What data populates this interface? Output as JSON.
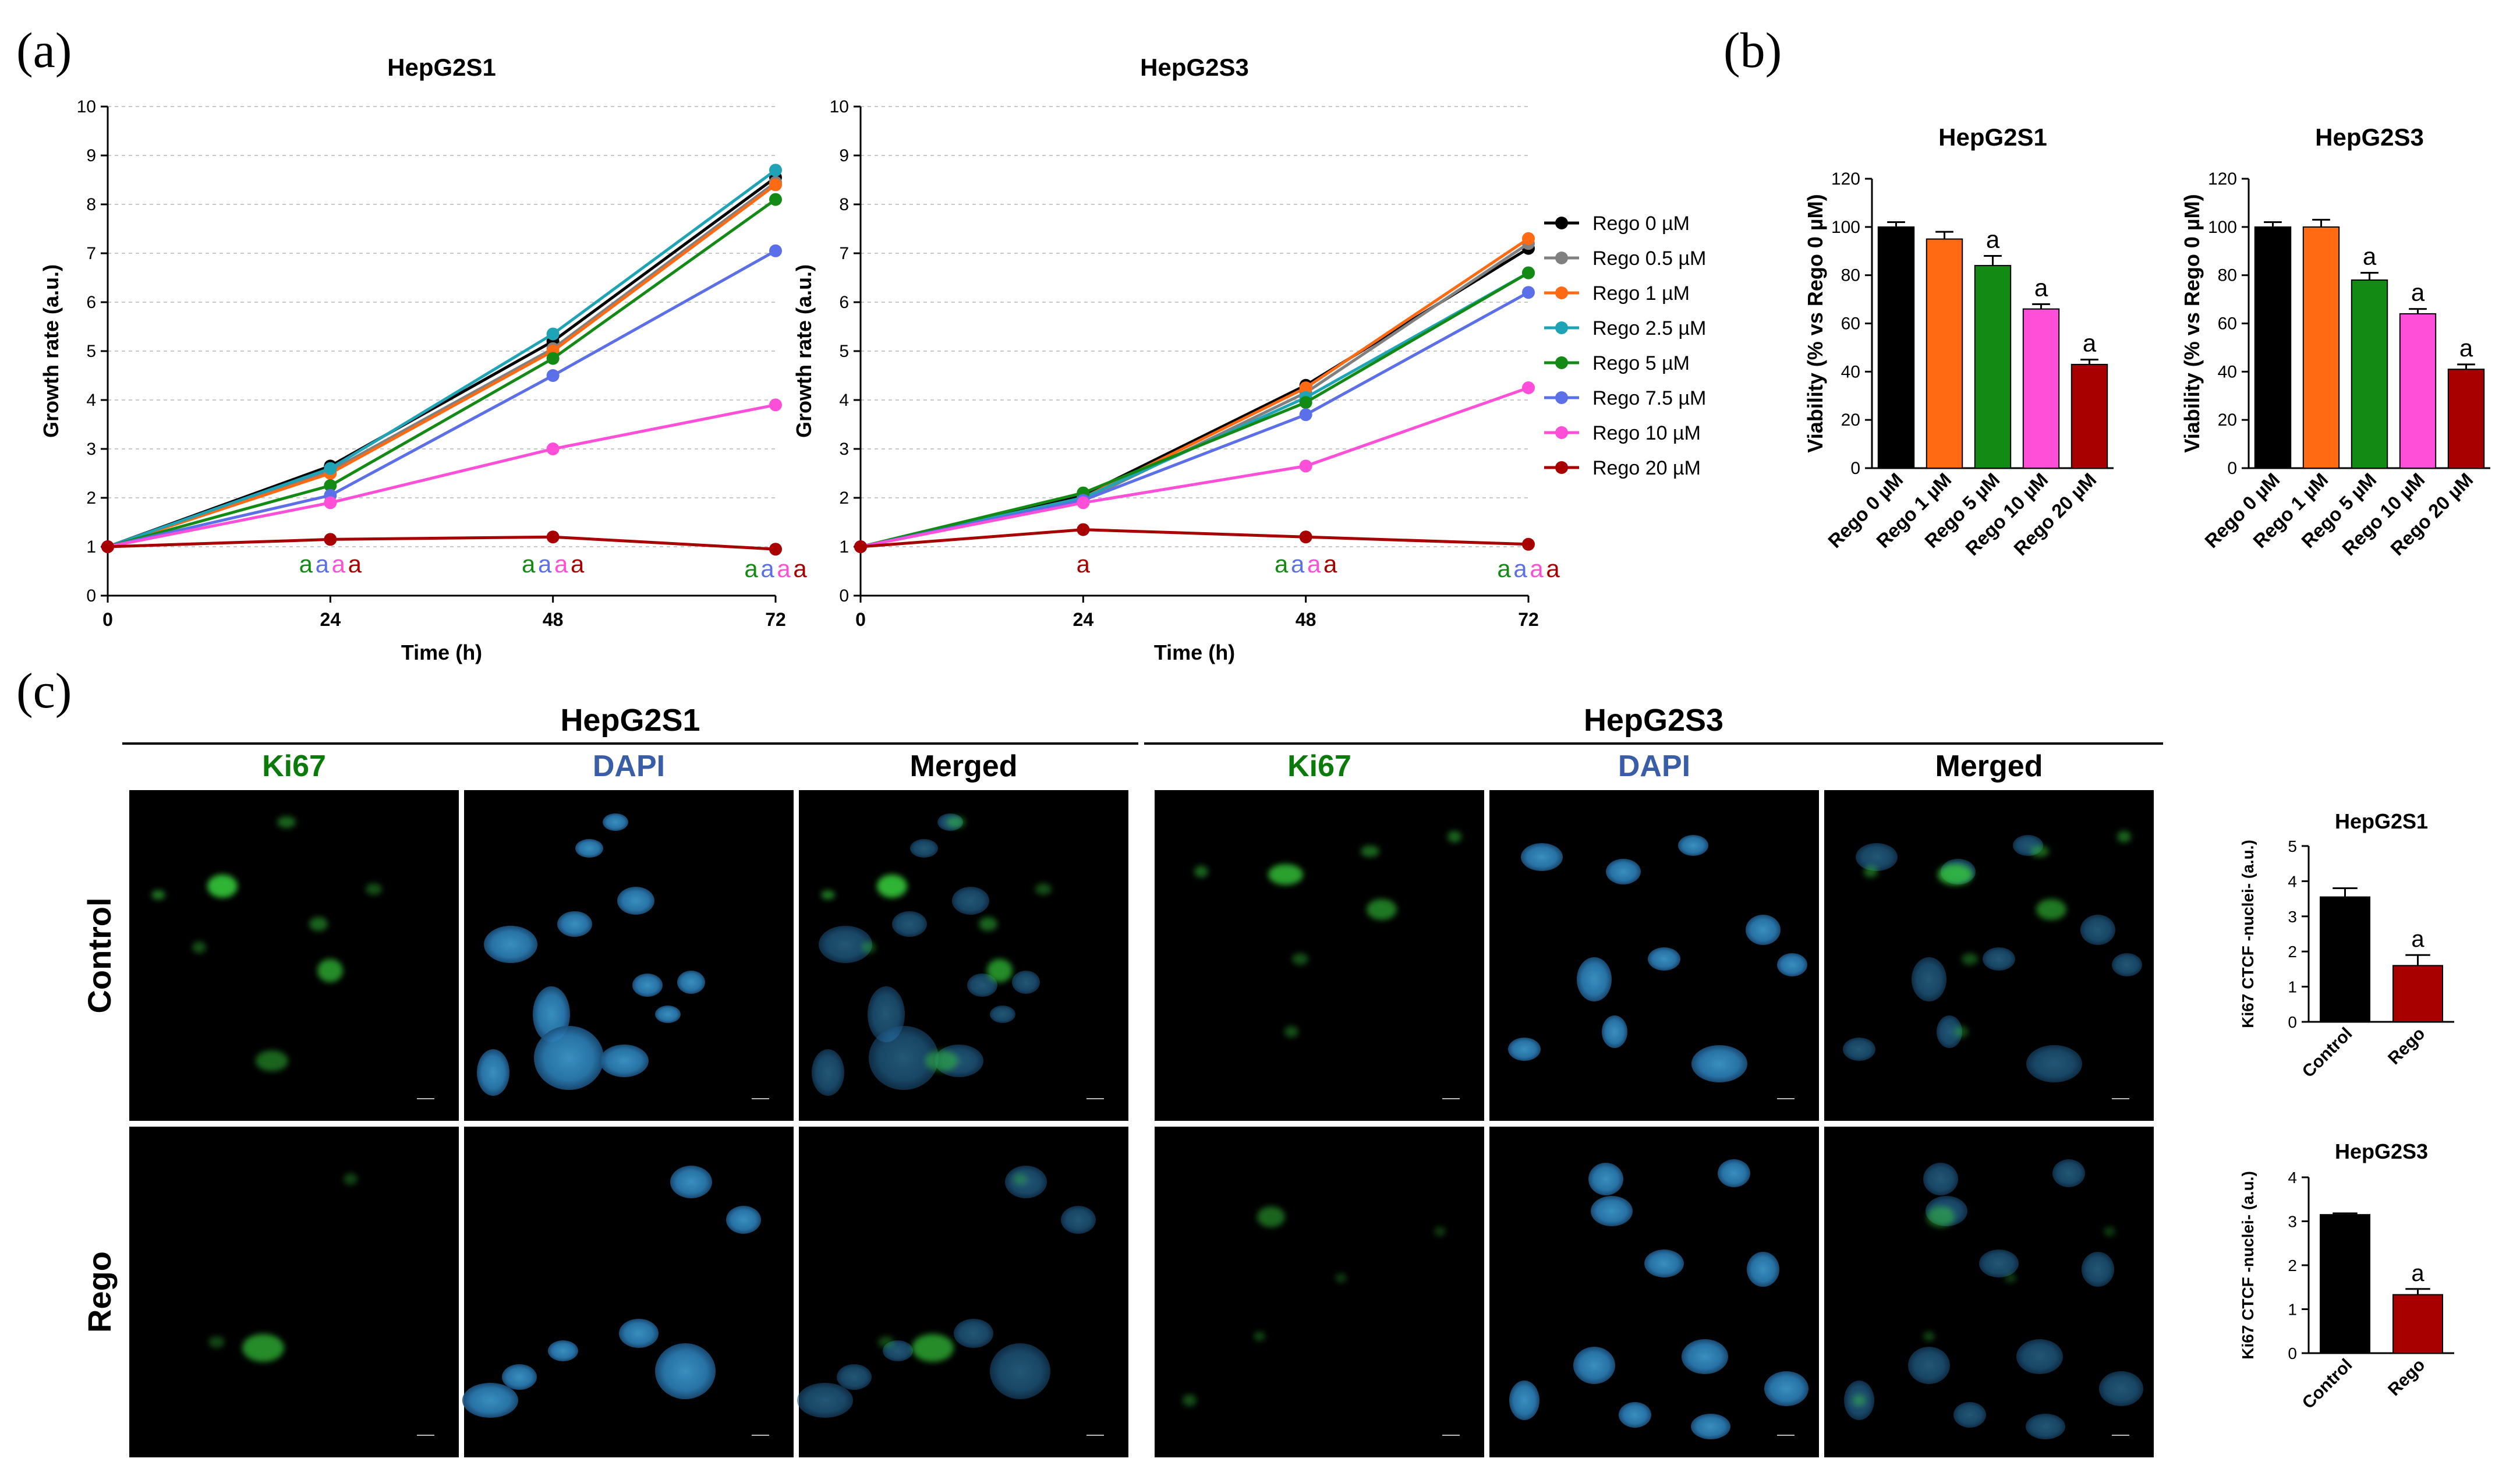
{
  "panel_labels": {
    "a": "(a)",
    "b": "(b)",
    "c": "(c)"
  },
  "colors": {
    "Rego 0 µM": "#000000",
    "Rego 0.5 µM": "#808080",
    "Rego 1 µM": "#ff6a13",
    "Rego 2.5 µM": "#1fa3b6",
    "Rego 5 µM": "#138a13",
    "Rego 7.5 µM": "#5b6fe8",
    "Rego 10 µM": "#ff4fd8",
    "Rego 20 µM": "#a80000",
    "Control": "#000000",
    "Rego": "#a80000"
  },
  "chart_data": [
    {
      "id": "a1",
      "type": "line",
      "title": "HepG2S1",
      "xlabel": "Time (h)",
      "ylabel": "Growth rate (a.u.)",
      "x": [
        0,
        24,
        48,
        72
      ],
      "xticks": [
        "0",
        "24",
        "48",
        "72"
      ],
      "xlim": [
        0,
        72
      ],
      "ylim": [
        0,
        10
      ],
      "yticks": [
        "0",
        "1",
        "2",
        "3",
        "4",
        "5",
        "6",
        "7",
        "8",
        "9",
        "10"
      ],
      "grid": "dotted horizontal",
      "series": [
        {
          "name": "Rego 0 µM",
          "values": [
            1,
            2.65,
            5.2,
            8.55
          ]
        },
        {
          "name": "Rego 0.5 µM",
          "values": [
            1,
            2.55,
            5.05,
            8.45
          ]
        },
        {
          "name": "Rego 1 µM",
          "values": [
            1,
            2.5,
            5.0,
            8.4
          ]
        },
        {
          "name": "Rego 2.5 µM",
          "values": [
            1,
            2.6,
            5.35,
            8.7
          ]
        },
        {
          "name": "Rego 5 µM",
          "values": [
            1,
            2.25,
            4.85,
            8.1
          ]
        },
        {
          "name": "Rego 7.5 µM",
          "values": [
            1,
            2.05,
            4.5,
            7.05
          ]
        },
        {
          "name": "Rego 10 µM",
          "values": [
            1,
            1.9,
            3.0,
            3.9
          ]
        },
        {
          "name": "Rego 20 µM",
          "values": [
            1,
            1.15,
            1.2,
            0.95
          ]
        }
      ],
      "annotations": [
        {
          "x": 24,
          "letters": [
            "a",
            "a",
            "a",
            "a"
          ],
          "series": [
            "Rego 5 µM",
            "Rego 7.5 µM",
            "Rego 10 µM",
            "Rego 20 µM"
          ]
        },
        {
          "x": 48,
          "letters": [
            "a",
            "a",
            "a",
            "a"
          ],
          "series": [
            "Rego 5 µM",
            "Rego 7.5 µM",
            "Rego 10 µM",
            "Rego 20 µM"
          ]
        },
        {
          "x": 72,
          "letters": [
            "a",
            "a",
            "a",
            "a"
          ],
          "series": [
            "Rego 5 µM",
            "Rego 7.5 µM",
            "Rego 10 µM",
            "Rego 20 µM"
          ]
        }
      ]
    },
    {
      "id": "a2",
      "type": "line",
      "title": "HepG2S3",
      "xlabel": "Time (h)",
      "ylabel": "Growth rate (a.u.)",
      "x": [
        0,
        24,
        48,
        72
      ],
      "xticks": [
        "0",
        "24",
        "48",
        "72"
      ],
      "xlim": [
        0,
        72
      ],
      "ylim": [
        0,
        10
      ],
      "yticks": [
        "0",
        "1",
        "2",
        "3",
        "4",
        "5",
        "6",
        "7",
        "8",
        "9",
        "10"
      ],
      "grid": "dotted horizontal",
      "series": [
        {
          "name": "Rego 0 µM",
          "values": [
            1,
            2.05,
            4.3,
            7.1
          ]
        },
        {
          "name": "Rego 0.5 µM",
          "values": [
            1,
            1.95,
            4.15,
            7.2
          ]
        },
        {
          "name": "Rego 1 µM",
          "values": [
            1,
            2.0,
            4.25,
            7.3
          ]
        },
        {
          "name": "Rego 2.5 µM",
          "values": [
            1,
            2.0,
            4.05,
            6.6
          ]
        },
        {
          "name": "Rego 5 µM",
          "values": [
            1,
            2.1,
            3.95,
            6.6
          ]
        },
        {
          "name": "Rego 7.5 µM",
          "values": [
            1,
            1.95,
            3.7,
            6.2
          ]
        },
        {
          "name": "Rego 10 µM",
          "values": [
            1,
            1.9,
            2.65,
            4.25
          ]
        },
        {
          "name": "Rego 20 µM",
          "values": [
            1,
            1.35,
            1.2,
            1.05
          ]
        }
      ],
      "annotations": [
        {
          "x": 24,
          "letters": [
            "a"
          ],
          "series": [
            "Rego 20 µM"
          ]
        },
        {
          "x": 48,
          "letters": [
            "a",
            "a",
            "a",
            "a"
          ],
          "series": [
            "Rego 5 µM",
            "Rego 7.5 µM",
            "Rego 10 µM",
            "Rego 20 µM"
          ]
        },
        {
          "x": 72,
          "letters": [
            "a",
            "a",
            "a",
            "a"
          ],
          "series": [
            "Rego 5 µM",
            "Rego 7.5 µM",
            "Rego 10 µM",
            "Rego 20 µM"
          ]
        }
      ],
      "legend": [
        "Rego 0 µM",
        "Rego 0.5 µM",
        "Rego 1 µM",
        "Rego 2.5 µM",
        "Rego 5 µM",
        "Rego 7.5 µM",
        "Rego 10 µM",
        "Rego 20 µM"
      ],
      "legend_position": "right"
    },
    {
      "id": "b1",
      "type": "bar",
      "title": "HepG2S1",
      "ylabel": "Viability (% vs Rego 0 µM)",
      "categories": [
        "Rego 0 µM",
        "Rego 1 µM",
        "Rego 5 µM",
        "Rego 10 µM",
        "Rego 20 µM"
      ],
      "values": [
        100,
        95,
        84,
        66,
        43
      ],
      "errors": [
        2,
        3,
        4,
        2,
        2
      ],
      "annotations": [
        "",
        "",
        "a",
        "a",
        "a"
      ],
      "ylim": [
        0,
        120
      ],
      "yticks": [
        "0",
        "20",
        "40",
        "60",
        "80",
        "100",
        "120"
      ],
      "colors": [
        "#000000",
        "#ff6a13",
        "#138a13",
        "#ff4fd8",
        "#a80000"
      ]
    },
    {
      "id": "b2",
      "type": "bar",
      "title": "HepG2S3",
      "ylabel": "Viability (% vs Rego 0 µM)",
      "categories": [
        "Rego 0 µM",
        "Rego 1 µM",
        "Rego 5 µM",
        "Rego 10 µM",
        "Rego 20 µM"
      ],
      "values": [
        100,
        100,
        78,
        64,
        41
      ],
      "errors": [
        2,
        3,
        3,
        2,
        2
      ],
      "annotations": [
        "",
        "",
        "a",
        "a",
        "a"
      ],
      "ylim": [
        0,
        120
      ],
      "yticks": [
        "0",
        "20",
        "40",
        "60",
        "80",
        "100",
        "120"
      ],
      "colors": [
        "#000000",
        "#ff6a13",
        "#138a13",
        "#ff4fd8",
        "#a80000"
      ]
    },
    {
      "id": "c1",
      "type": "bar",
      "title": "HepG2S1",
      "ylabel": "Ki67 CTCF -nuclei- (a.u.)",
      "categories": [
        "Control",
        "Rego"
      ],
      "values": [
        3.55,
        1.6
      ],
      "errors": [
        0.25,
        0.3
      ],
      "annotations": [
        "",
        "a"
      ],
      "ylim": [
        0,
        5
      ],
      "yticks": [
        "0",
        "1",
        "2",
        "3",
        "4",
        "5"
      ],
      "colors": [
        "#000000",
        "#a80000"
      ]
    },
    {
      "id": "c2",
      "type": "bar",
      "title": "HepG2S3",
      "ylabel": "Ki67 CTCF -nuclei- (a.u.)",
      "categories": [
        "Control",
        "Rego"
      ],
      "values": [
        3.15,
        1.33
      ],
      "errors": [
        0.03,
        0.13
      ],
      "annotations": [
        "",
        "a"
      ],
      "ylim": [
        0,
        4
      ],
      "yticks": [
        "0",
        "1",
        "2",
        "3",
        "4"
      ],
      "colors": [
        "#000000",
        "#a80000"
      ]
    }
  ],
  "microscopy": {
    "groups": [
      "HepG2S1",
      "HepG2S3"
    ],
    "columns": [
      "Ki67",
      "DAPI",
      "Merged"
    ],
    "rows": [
      "Control",
      "Rego"
    ],
    "column_colors": {
      "Ki67": "#0a7a0a",
      "DAPI": "#3a5da8",
      "Merged": "#000000"
    }
  }
}
